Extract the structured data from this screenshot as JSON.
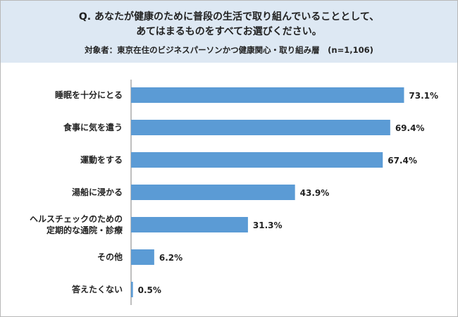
{
  "header": {
    "question_line1": "Q. あなたが健康のために普段の生活で取り組んでいることとして、",
    "question_line2": "あてはまるものをすべてお選びください。",
    "subject": "対象者：東京在住のビジネスパーソンかつ健康関心・取り組み層　(n=1,106)"
  },
  "chart_data": {
    "type": "bar",
    "orientation": "horizontal",
    "categories": [
      [
        "睡眠を十分にとる"
      ],
      [
        "食事に気を遣う"
      ],
      [
        "運動をする"
      ],
      [
        "湯船に浸かる"
      ],
      [
        "ヘルスチェックのための",
        "定期的な通院・診療"
      ],
      [
        "その他"
      ],
      [
        "答えたくない"
      ]
    ],
    "values": [
      73.1,
      69.4,
      67.4,
      43.9,
      31.3,
      6.2,
      0.5
    ],
    "value_labels": [
      "73.1%",
      "69.4%",
      "67.4%",
      "43.9%",
      "31.3%",
      "6.2%",
      "0.5%"
    ],
    "xlim": [
      0,
      100
    ],
    "grid": false,
    "bar_color": "#5b9bd5",
    "axis_color": "#7f7f7f"
  }
}
